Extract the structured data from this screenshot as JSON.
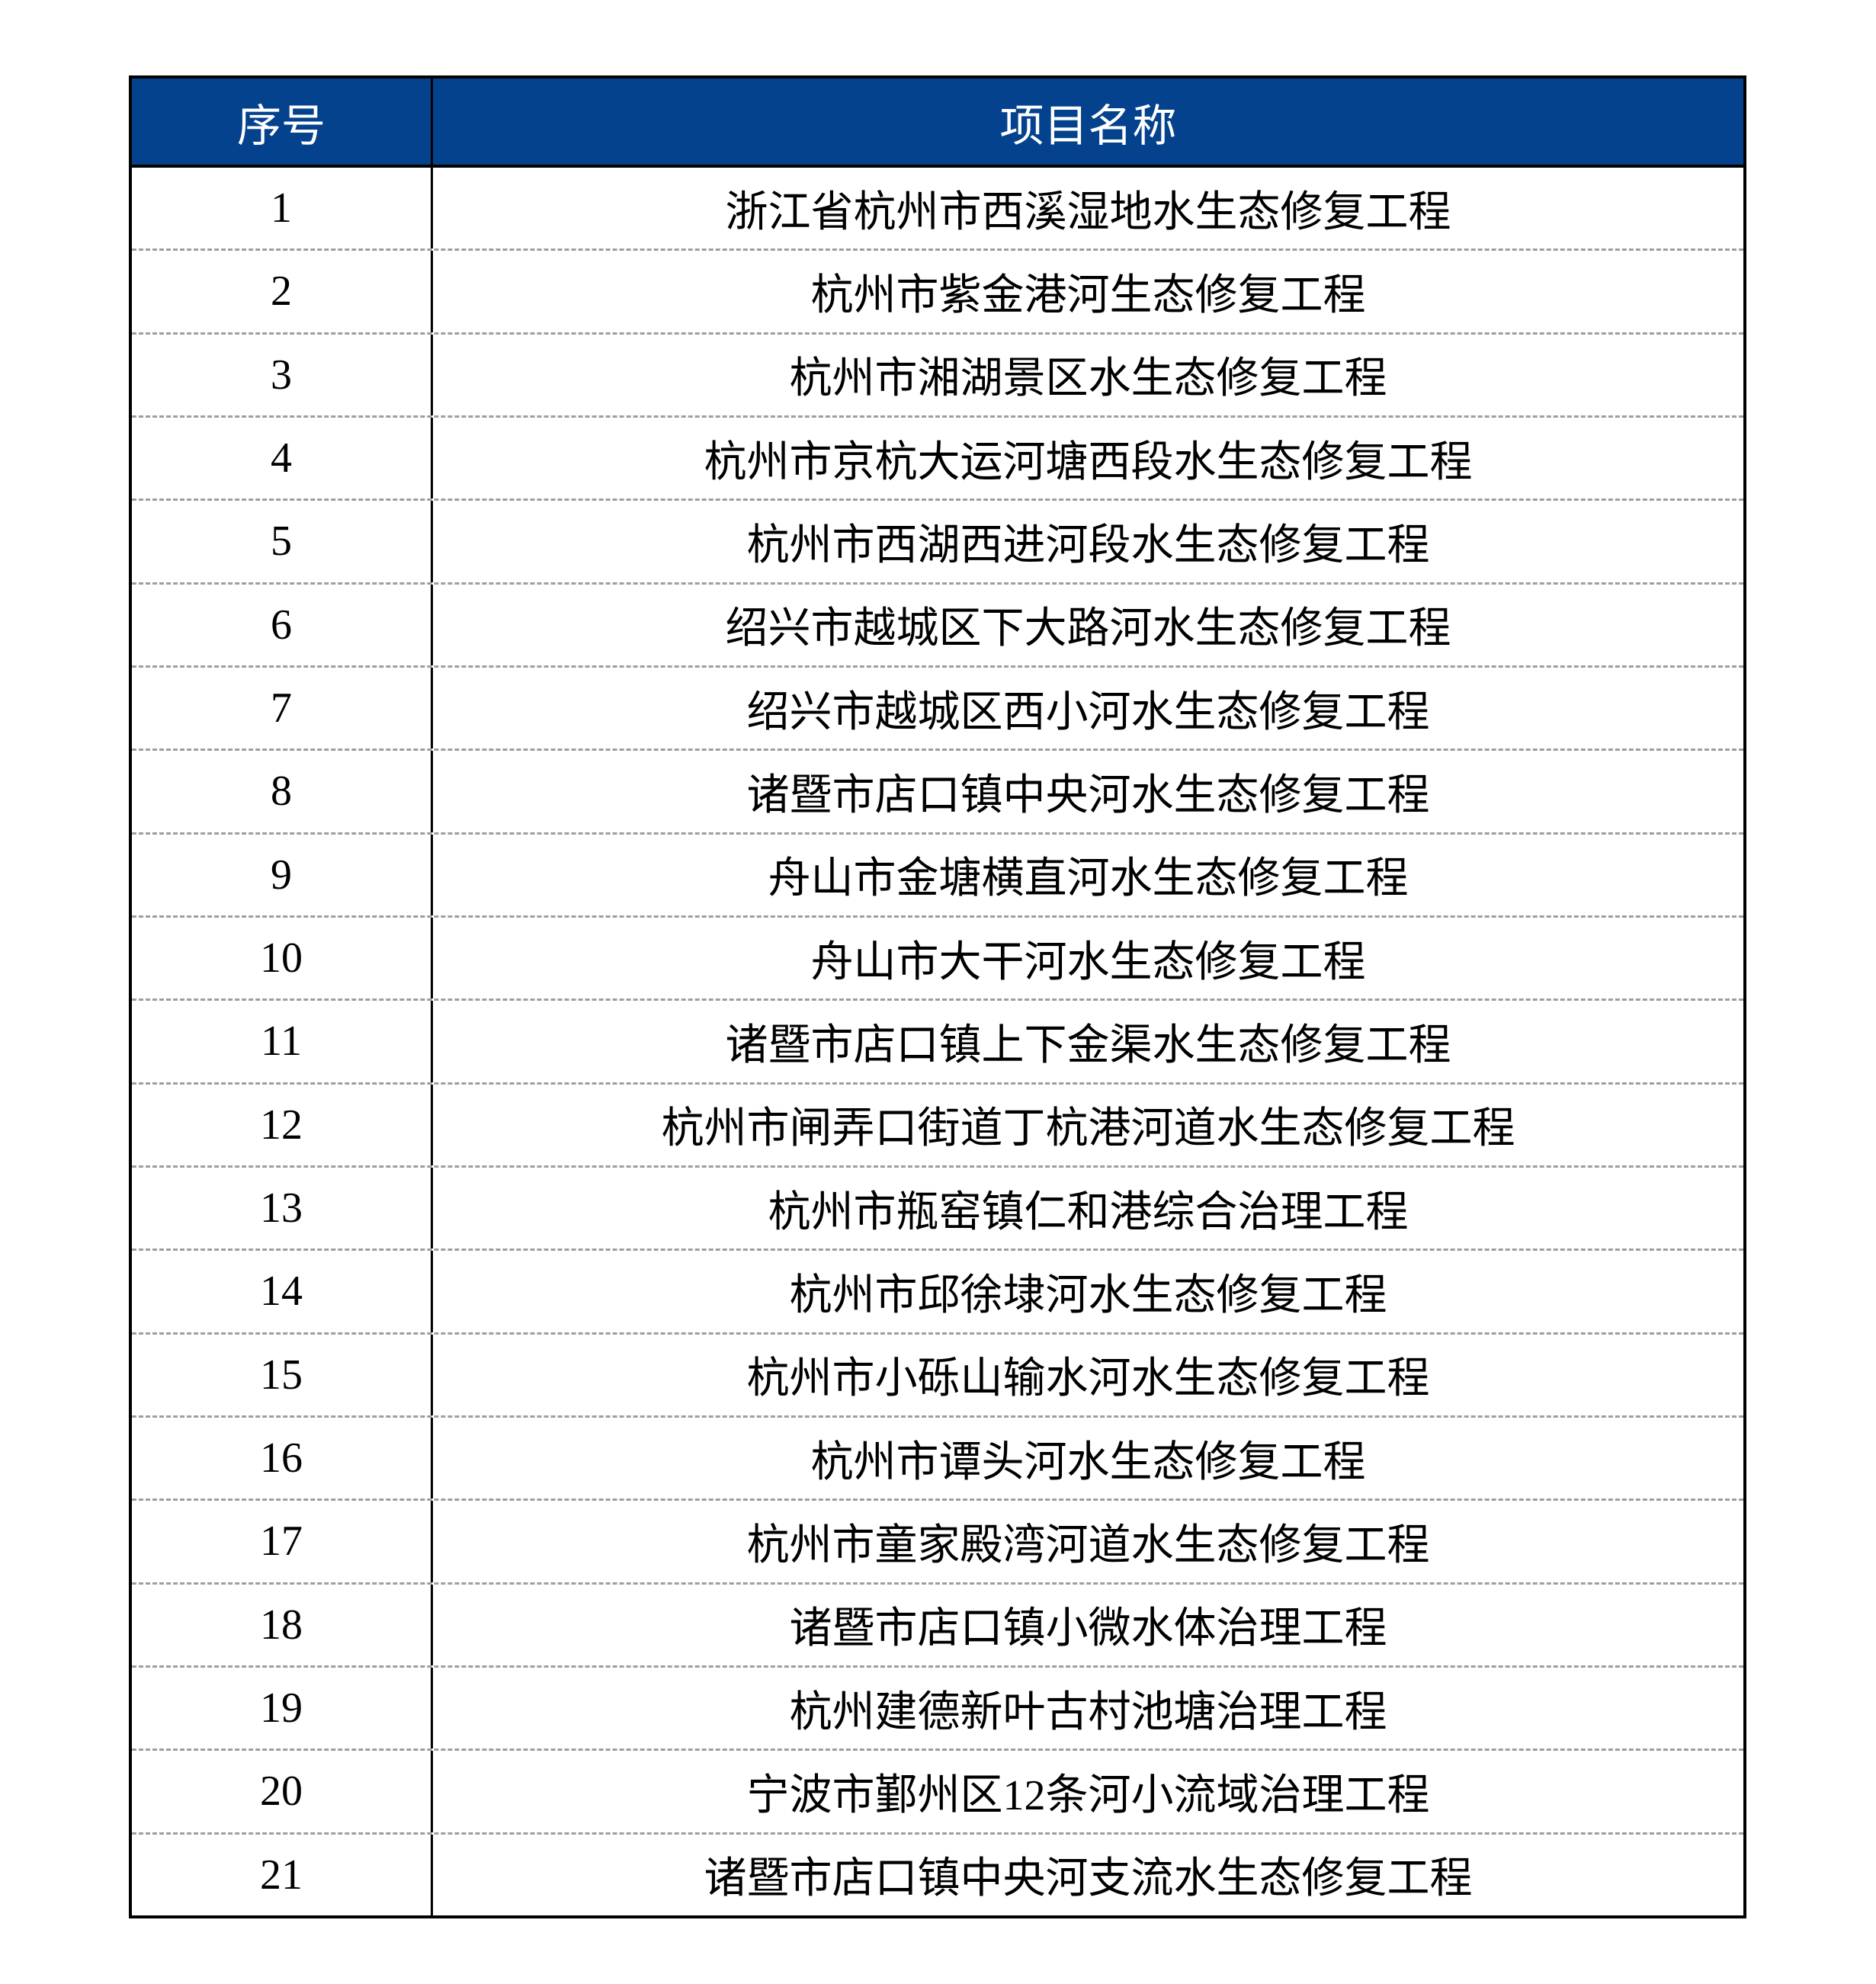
{
  "page": {
    "background_color": "#ffffff"
  },
  "table": {
    "header": {
      "index_label": "序号",
      "name_label": "项目名称",
      "bg_color": "#04428E",
      "text_color": "#ffffff"
    },
    "style": {
      "outer_border_color": "#000000",
      "row_divider_color": "#9e9e9e",
      "row_divider_style": "dashed"
    },
    "rows": [
      {
        "index": "1",
        "name": "浙江省杭州市西溪湿地水生态修复工程"
      },
      {
        "index": "2",
        "name": "杭州市紫金港河生态修复工程"
      },
      {
        "index": "3",
        "name": "杭州市湘湖景区水生态修复工程"
      },
      {
        "index": "4",
        "name": "杭州市京杭大运河塘西段水生态修复工程"
      },
      {
        "index": "5",
        "name": "杭州市西湖西进河段水生态修复工程"
      },
      {
        "index": "6",
        "name": "绍兴市越城区下大路河水生态修复工程"
      },
      {
        "index": "7",
        "name": "绍兴市越城区西小河水生态修复工程"
      },
      {
        "index": "8",
        "name": "诸暨市店口镇中央河水生态修复工程"
      },
      {
        "index": "9",
        "name": "舟山市金塘横直河水生态修复工程"
      },
      {
        "index": "10",
        "name": "舟山市大干河水生态修复工程"
      },
      {
        "index": "11",
        "name": "诸暨市店口镇上下金渠水生态修复工程"
      },
      {
        "index": "12",
        "name": "杭州市闸弄口街道丁杭港河道水生态修复工程"
      },
      {
        "index": "13",
        "name": "杭州市瓶窑镇仁和港综合治理工程"
      },
      {
        "index": "14",
        "name": "杭州市邱徐埭河水生态修复工程"
      },
      {
        "index": "15",
        "name": "杭州市小砾山输水河水生态修复工程"
      },
      {
        "index": "16",
        "name": "杭州市谭头河水生态修复工程"
      },
      {
        "index": "17",
        "name": "杭州市童家殿湾河道水生态修复工程"
      },
      {
        "index": "18",
        "name": "诸暨市店口镇小微水体治理工程"
      },
      {
        "index": "19",
        "name": "杭州建德新叶古村池塘治理工程"
      },
      {
        "index": "20",
        "name": "宁波市鄞州区12条河小流域治理工程"
      },
      {
        "index": "21",
        "name": "诸暨市店口镇中央河支流水生态修复工程"
      }
    ]
  }
}
